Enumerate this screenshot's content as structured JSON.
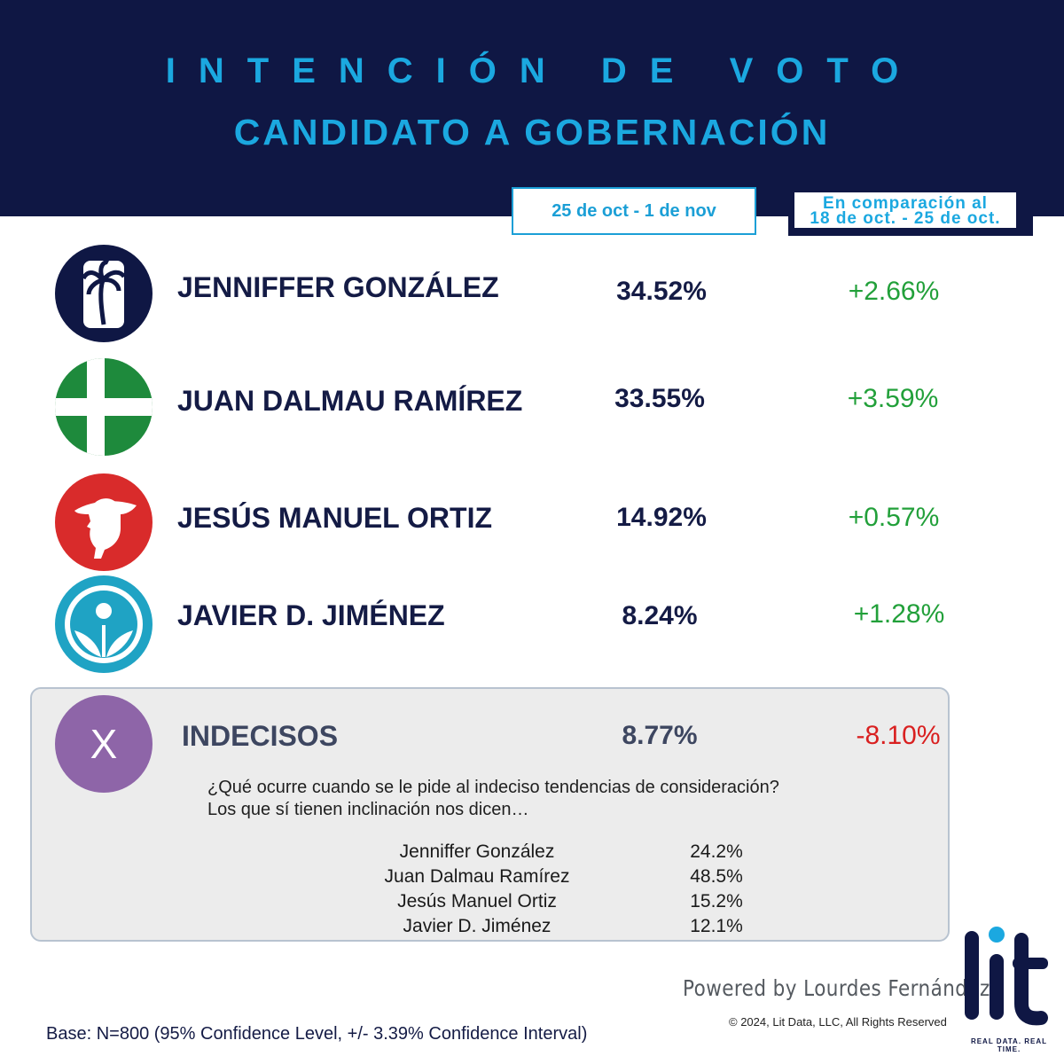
{
  "header": {
    "title_line1": "INTENCIÓN DE VOTO",
    "title_line2": "CANDIDATO A GOBERNACIÓN",
    "date_range": "25 de oct - 1 de nov",
    "comparison_line1": "En comparación al",
    "comparison_line2": "18 de oct. - 25 de oct."
  },
  "candidates": [
    {
      "name": "JENNIFFER GONZÁLEZ",
      "value": "34.52%",
      "change": "+2.66%",
      "logo": "palm-tree-logo",
      "color": "#0f1744"
    },
    {
      "name": "JUAN DALMAU RAMÍREZ",
      "value": "33.55%",
      "change": "+3.59%",
      "logo": "green-cross-logo",
      "color": "#1e8a3c"
    },
    {
      "name": "JESÚS MANUEL ORTIZ",
      "value": "14.92%",
      "change": "+0.57%",
      "logo": "jibaro-profile-logo",
      "color": "#d92b2b"
    },
    {
      "name": "JAVIER D. JIMÉNEZ",
      "value": "8.24%",
      "change": "+1.28%",
      "logo": "hands-figure-logo",
      "color": "#1fa3c4"
    }
  ],
  "undecided": {
    "label": "INDECISOS",
    "icon": "X",
    "value": "8.77%",
    "change": "-8.10%",
    "question_line1": "¿Qué ocurre cuando se le pide al indeciso tendencias de consideración?",
    "question_line2": "Los que sí tienen inclinación nos dicen…",
    "leanings": [
      {
        "name": "Jenniffer González",
        "value": "24.2%"
      },
      {
        "name": "Juan Dalmau Ramírez",
        "value": "48.5%"
      },
      {
        "name": "Jesús Manuel Ortiz",
        "value": "15.2%"
      },
      {
        "name": "Javier D. Jiménez",
        "value": "12.1%"
      }
    ]
  },
  "footer": {
    "powered_by": "Powered by Lourdes Fernández",
    "copyright": "© 2024, Lit Data, LLC, All Rights Reserved",
    "base_note": "Base: N=800 (95% Confidence Level, +/- 3.39% Confidence Interval)",
    "brand": "lit",
    "tagline": "REAL DATA. REAL TIME."
  },
  "colors": {
    "navy": "#0f1744",
    "accent_blue": "#1ba8e0",
    "positive": "#22a03a",
    "negative": "#d92020",
    "undecided_purple": "#8e65a8"
  },
  "chart_data": {
    "type": "table",
    "title": "INTENCIÓN DE VOTO CANDIDATO A GOBERNACIÓN",
    "columns": [
      "25 de oct - 1 de nov",
      "En comparación al 18 de oct. - 25 de oct."
    ],
    "categories": [
      "JENNIFFER GONZÁLEZ",
      "JUAN DALMAU RAMÍREZ",
      "JESÚS MANUEL ORTIZ",
      "JAVIER D. JIMÉNEZ",
      "INDECISOS"
    ],
    "series": [
      {
        "name": "25 de oct - 1 de nov",
        "values": [
          34.52,
          33.55,
          14.92,
          8.24,
          8.77
        ]
      },
      {
        "name": "En comparación al 18 de oct. - 25 de oct.",
        "values": [
          2.66,
          3.59,
          0.57,
          1.28,
          -8.1
        ]
      }
    ],
    "undecided_leanings": {
      "categories": [
        "Jenniffer González",
        "Juan Dalmau Ramírez",
        "Jesús Manuel Ortiz",
        "Javier D. Jiménez"
      ],
      "values": [
        24.2,
        48.5,
        15.2,
        12.1
      ]
    }
  }
}
